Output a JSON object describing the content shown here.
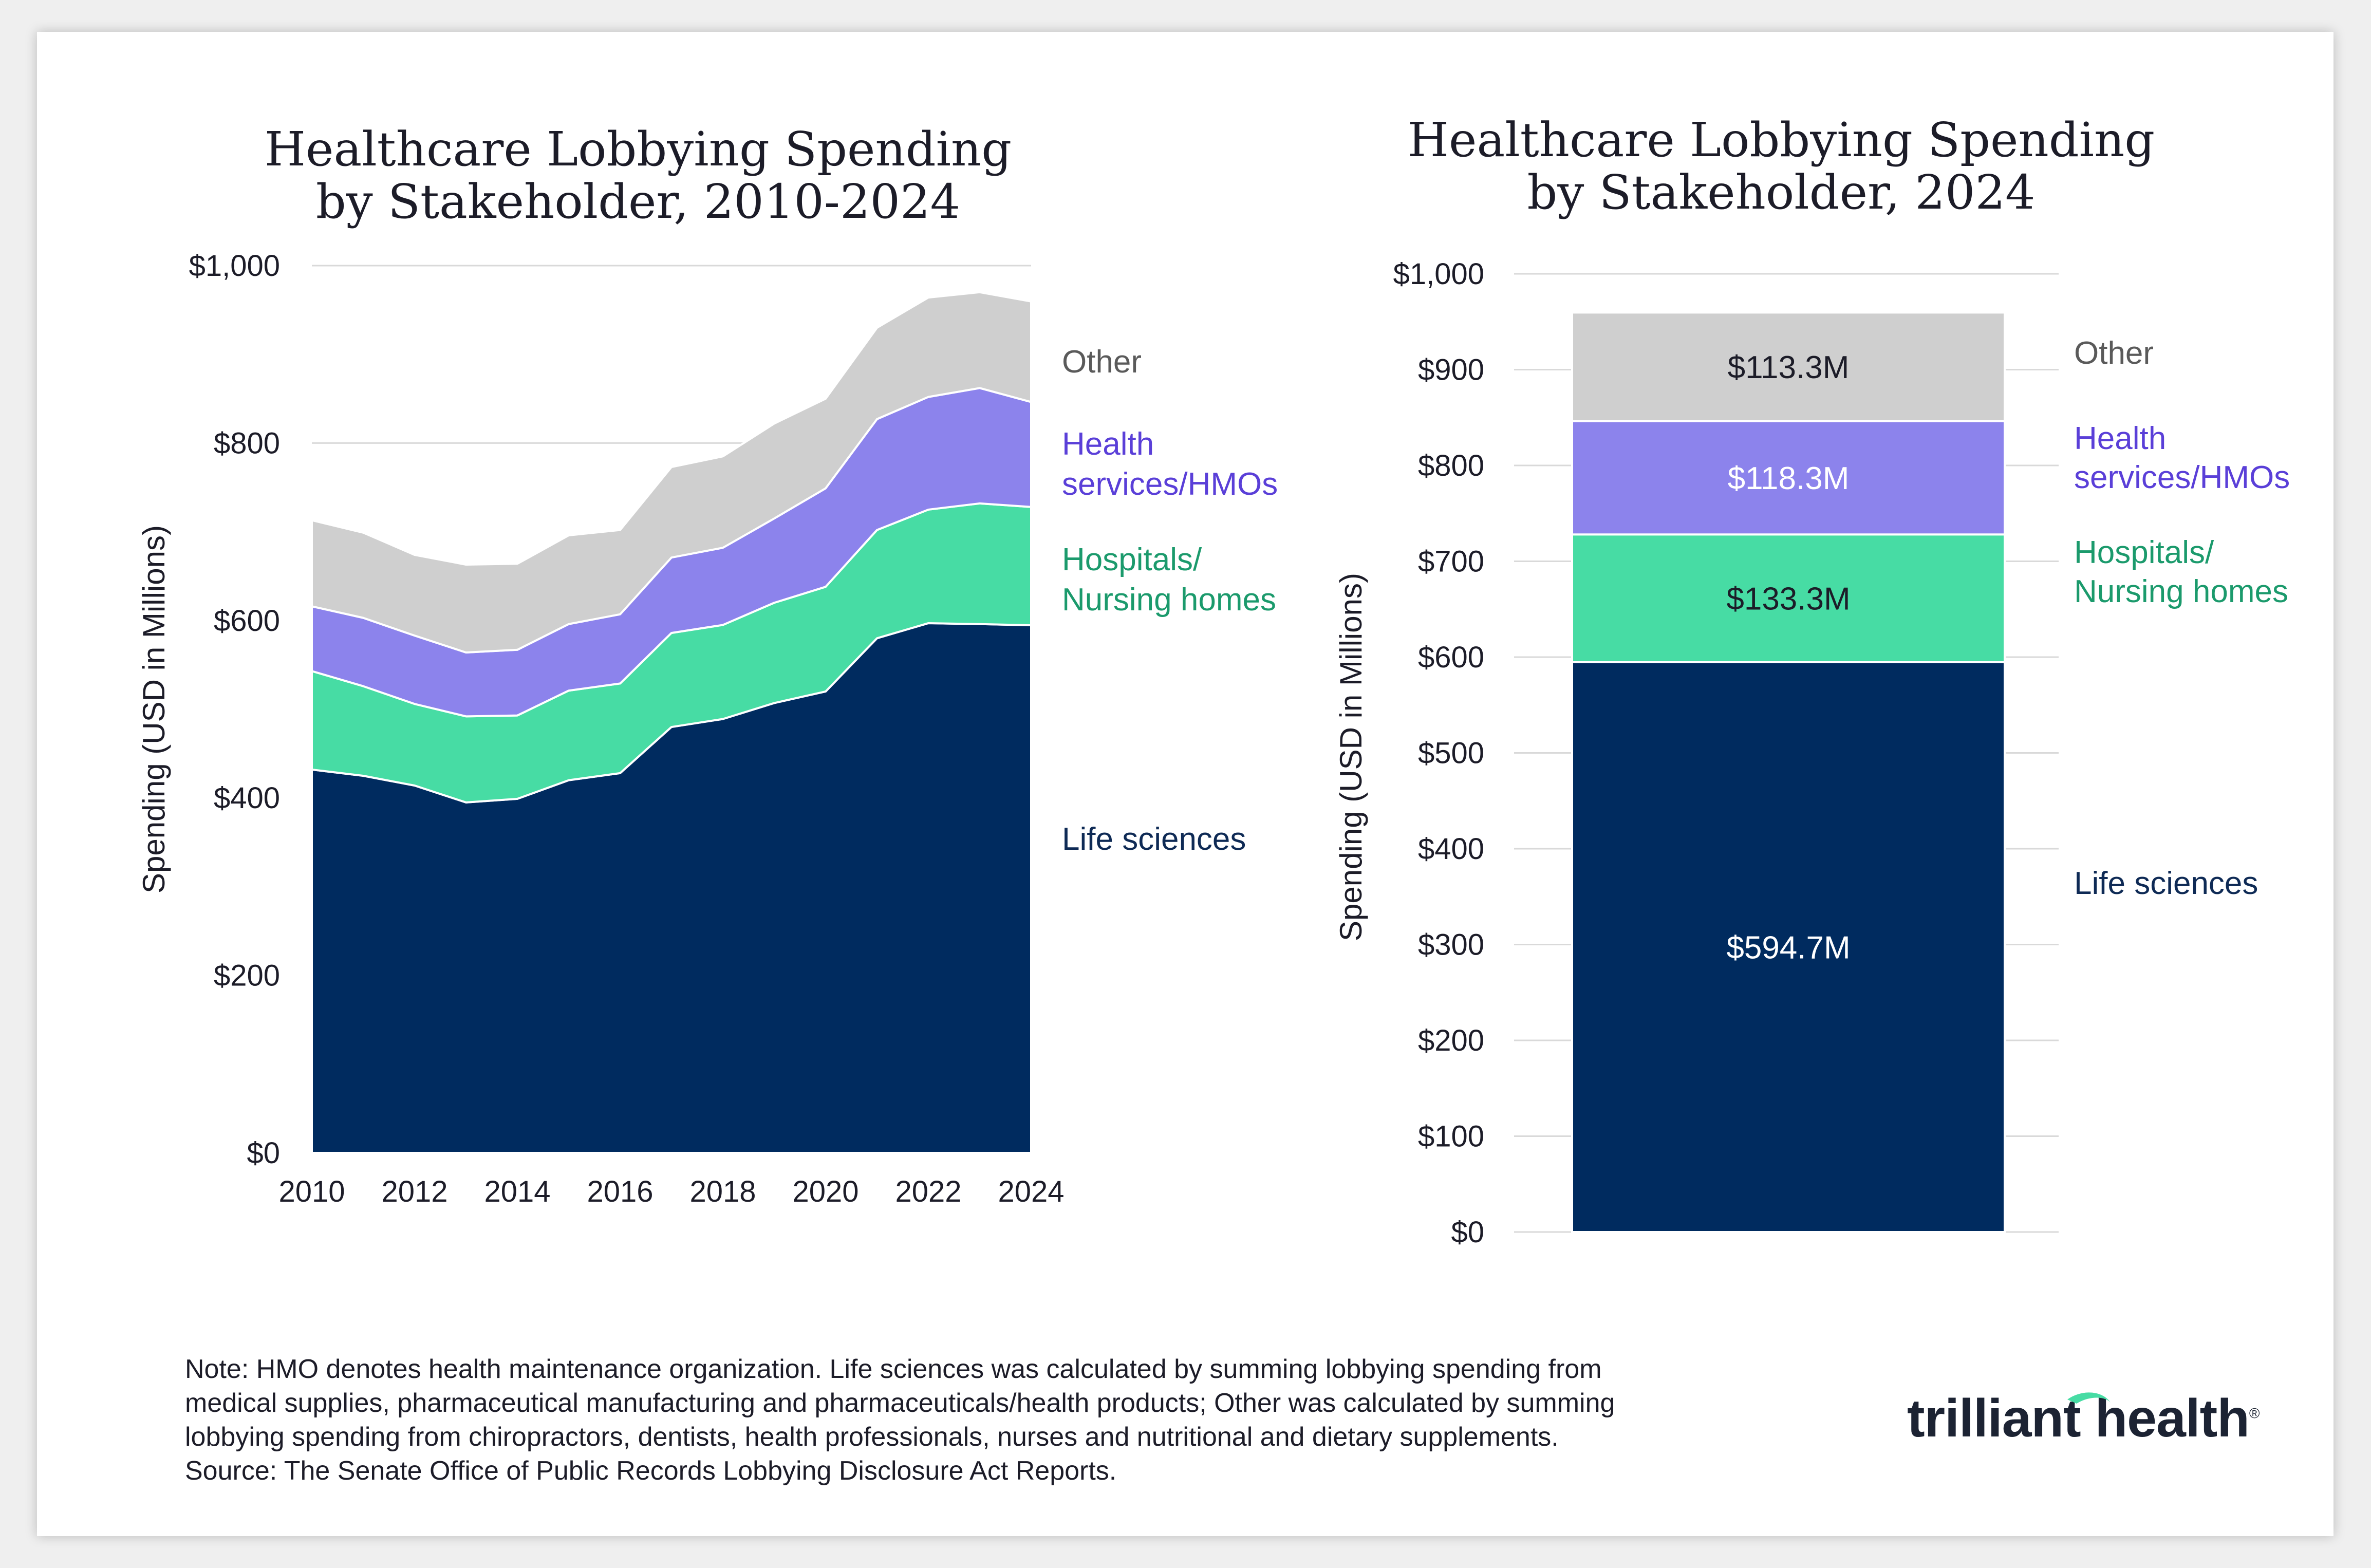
{
  "colors": {
    "life_sciences": "#002b5f",
    "hospitals": "#47dca4",
    "health_services": "#8c83ec",
    "other": "#cfcfcf",
    "hospitals_label": "#1b9a6c",
    "health_services_label": "#5a3fd8",
    "other_label": "#5a5a5a",
    "life_label": "#0e2a55",
    "grid": "#d9d9d9"
  },
  "chart_data": [
    {
      "type": "area",
      "stacked": true,
      "title": [
        "Healthcare Lobbying Spending",
        "by Stakeholder, 2010-2024"
      ],
      "xlabel": "",
      "ylabel": "Spending (USD in Millions)",
      "ylim": [
        0,
        1000
      ],
      "y_ticks": [
        0,
        200,
        400,
        600,
        800,
        1000
      ],
      "y_tick_labels": [
        "$0",
        "$200",
        "$400",
        "$600",
        "$800",
        "$1,000"
      ],
      "x_ticks": [
        2010,
        2012,
        2014,
        2016,
        2018,
        2020,
        2022,
        2024
      ],
      "x_tick_labels": [
        "2010",
        "2012",
        "2014",
        "2016",
        "2018",
        "2020",
        "2022",
        "2024"
      ],
      "grid": true,
      "x": [
        2010,
        2011,
        2012,
        2013,
        2014,
        2015,
        2016,
        2017,
        2018,
        2019,
        2020,
        2021,
        2022,
        2023,
        2024
      ],
      "series": [
        {
          "name": "Life sciences",
          "key": "life_sciences",
          "values": [
            432,
            425,
            414,
            395,
            399,
            420,
            428,
            480,
            489,
            507,
            520,
            580,
            597,
            596,
            594.7
          ]
        },
        {
          "name": "Hospitals/ Nursing homes",
          "key": "hospitals",
          "values": [
            111,
            101,
            92,
            97,
            94,
            101,
            101,
            106,
            106,
            113,
            118,
            122,
            128,
            136,
            133.3
          ]
        },
        {
          "name": "Health services/HMOs",
          "key": "health_services",
          "values": [
            73,
            77,
            77,
            72,
            74,
            75,
            78,
            85,
            87,
            95,
            111,
            125,
            127,
            130,
            118.3
          ]
        },
        {
          "name": "Other",
          "key": "other",
          "values": [
            97,
            96,
            91,
            99,
            97,
            100,
            95,
            102,
            103,
            107,
            101,
            103,
            112,
            108,
            113.3
          ]
        }
      ],
      "legend": [
        {
          "key": "other",
          "lines": [
            "Other"
          ]
        },
        {
          "key": "health_services",
          "lines": [
            "Health",
            "services/HMOs"
          ]
        },
        {
          "key": "hospitals",
          "lines": [
            "Hospitals/",
            "Nursing homes"
          ]
        },
        {
          "key": "life_sciences",
          "lines": [
            "Life sciences"
          ]
        }
      ],
      "legend_placement": "right"
    },
    {
      "type": "bar",
      "stacked": true,
      "title": [
        "Healthcare Lobbying Spending",
        "by Stakeholder, 2024"
      ],
      "ylabel": "Spending (USD in Millions)",
      "ylim": [
        0,
        1000
      ],
      "y_ticks": [
        0,
        100,
        200,
        300,
        400,
        500,
        600,
        700,
        800,
        900,
        1000
      ],
      "y_tick_labels": [
        "$0",
        "$100",
        "$200",
        "$300",
        "$400",
        "$500",
        "$600",
        "$700",
        "$800",
        "$900",
        "$1,000"
      ],
      "grid": true,
      "categories": [
        "2024"
      ],
      "series": [
        {
          "name": "Life sciences",
          "key": "life_sciences",
          "values": [
            594.7
          ],
          "label": "$594.7M"
        },
        {
          "name": "Hospitals/ Nursing homes",
          "key": "hospitals",
          "values": [
            133.3
          ],
          "label": "$133.3M"
        },
        {
          "name": "Health services/HMOs",
          "key": "health_services",
          "values": [
            118.3
          ],
          "label": "$118.3M"
        },
        {
          "name": "Other",
          "key": "other",
          "values": [
            113.3
          ],
          "label": "$113.3M"
        }
      ],
      "legend": [
        {
          "key": "other",
          "lines": [
            "Other"
          ]
        },
        {
          "key": "health_services",
          "lines": [
            "Health",
            "services/HMOs"
          ]
        },
        {
          "key": "hospitals",
          "lines": [
            "Hospitals/",
            "Nursing homes"
          ]
        },
        {
          "key": "life_sciences",
          "lines": [
            "Life sciences"
          ]
        }
      ],
      "legend_placement": "right"
    }
  ],
  "note": {
    "lines": [
      "Note: HMO denotes health maintenance organization. Life sciences was calculated by summing lobbying spending from",
      "medical supplies, pharmaceutical manufacturing and pharmaceuticals/health products; Other was calculated by summing",
      "lobbying spending from chiropractors, dentists, health professionals, nurses and nutritional and dietary supplements.",
      "Source: The Senate Office of Public Records Lobbying Disclosure Act Reports."
    ]
  },
  "logo": {
    "text": "trilliant health",
    "mark": "®",
    "swoosh_color": "#47dca4"
  }
}
